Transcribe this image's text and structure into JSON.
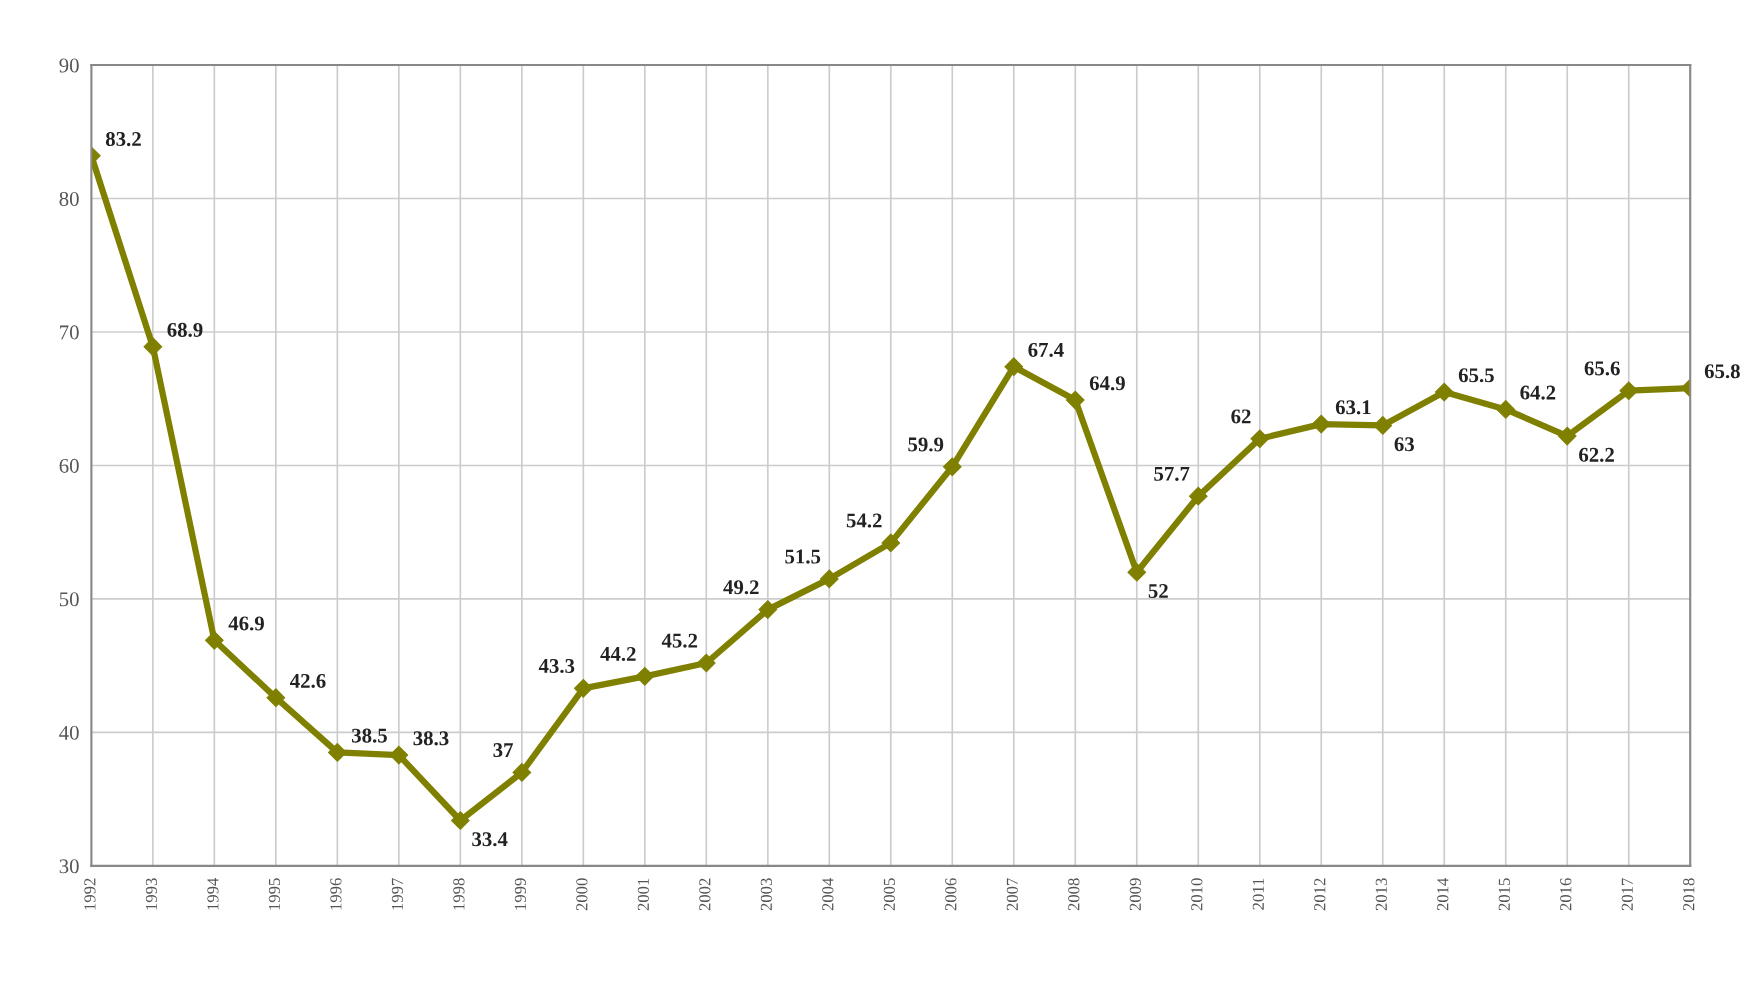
{
  "chart_data": {
    "type": "line",
    "categories": [
      "1992",
      "1993",
      "1994",
      "1995",
      "1996",
      "1997",
      "1998",
      "1999",
      "2000",
      "2001",
      "2002",
      "2003",
      "2004",
      "2005",
      "2006",
      "2007",
      "2008",
      "2009",
      "2010",
      "2011",
      "2012",
      "2013",
      "2014",
      "2015",
      "2016",
      "2017",
      "2018"
    ],
    "series": [
      {
        "color": "#808000",
        "values": [
          83.2,
          68.9,
          46.9,
          42.6,
          38.5,
          38.3,
          33.4,
          37,
          43.3,
          44.2,
          45.2,
          49.2,
          51.5,
          54.2,
          59.9,
          67.4,
          64.9,
          52,
          57.7,
          62,
          63.1,
          63,
          65.5,
          64.2,
          62.2,
          65.6,
          65.8
        ]
      }
    ],
    "ylim": [
      30,
      90
    ],
    "yticks": [
      30,
      40,
      50,
      60,
      70,
      80,
      90
    ],
    "grid": true,
    "marker": "diamond",
    "line_style": "solid",
    "data_labels": true
  }
}
